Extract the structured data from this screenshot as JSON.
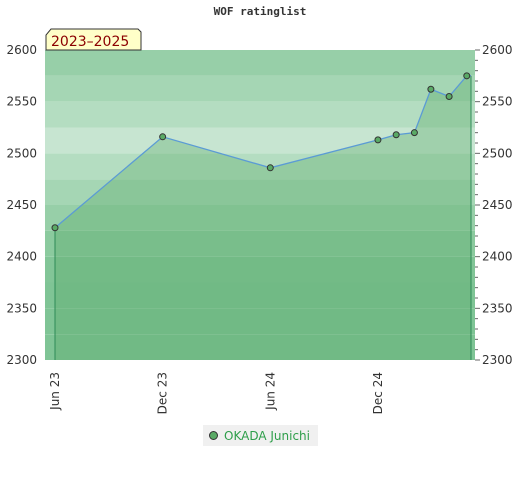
{
  "chart_data": {
    "type": "area",
    "title": "WOF ratinglist",
    "period_badge": "2023–2025",
    "ylim": [
      2300,
      2600
    ],
    "y_ticks": [
      2300,
      2350,
      2400,
      2450,
      2500,
      2550,
      2600
    ],
    "x_ticks": [
      {
        "label": "Jun 23",
        "date": "2023-06-01"
      },
      {
        "label": "Dec 23",
        "date": "2023-12-01"
      },
      {
        "label": "Jun 24",
        "date": "2024-06-01"
      },
      {
        "label": "Dec 24",
        "date": "2024-12-01"
      }
    ],
    "xlim": [
      "2023-05-15",
      "2025-05-15"
    ],
    "series": [
      {
        "name": "OKADA Junichi",
        "x": [
          "2023-06-01",
          "2023-12-01",
          "2024-06-01",
          "2024-12-01",
          "2025-01-01",
          "2025-02-01",
          "2025-03-01",
          "2025-04-01",
          "2025-05-01"
        ],
        "values": [
          2428,
          2516,
          2486,
          2513,
          2518,
          2520,
          2562,
          2555,
          2575
        ]
      }
    ],
    "colors": {
      "line": "#5b9bd5",
      "area": "#5aaa66",
      "marker": "#5aaa66",
      "band_dark": "#7fc495",
      "band_light": "#eef8f1"
    },
    "grid": true,
    "legend_position": "bottom"
  }
}
